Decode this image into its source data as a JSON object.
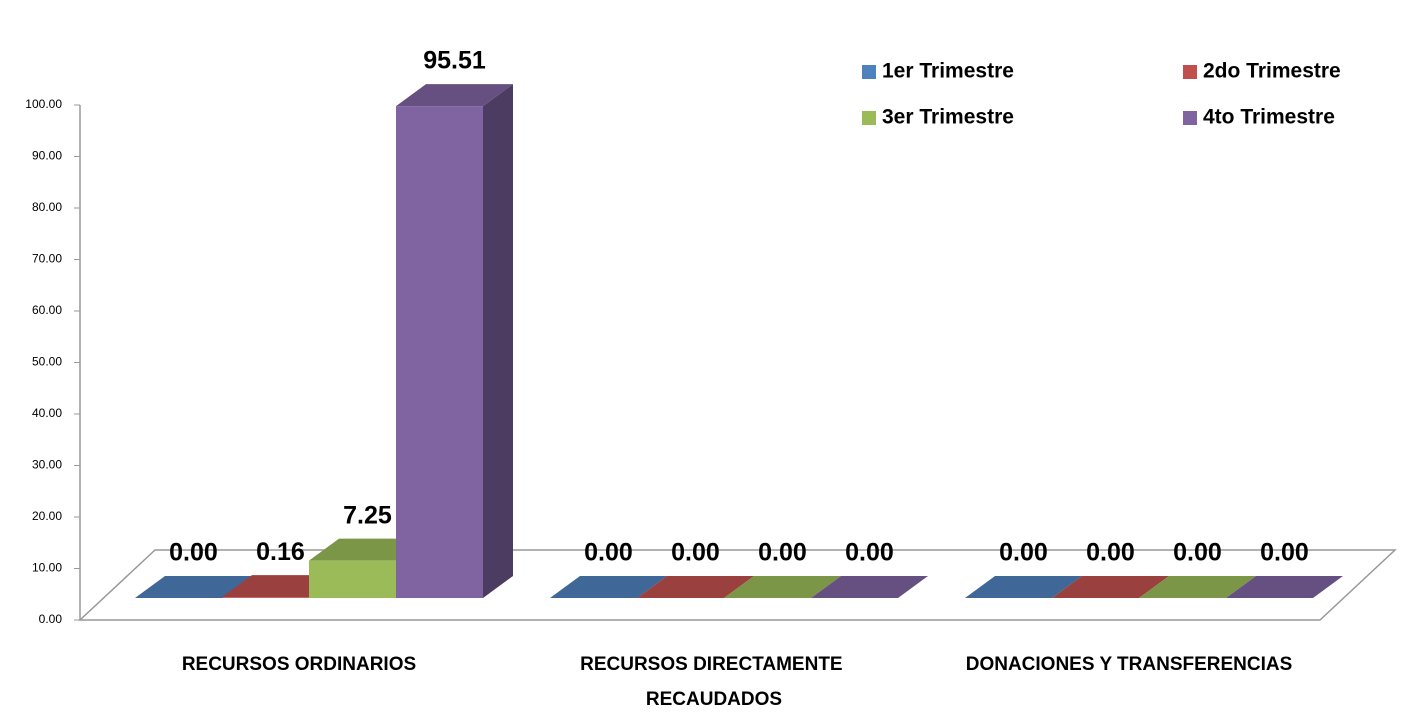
{
  "chart_data": {
    "type": "bar3d",
    "categories": [
      "RECURSOS ORDINARIOS",
      "RECURSOS DIRECTAMENTE RECAUDADOS",
      "DONACIONES Y TRANSFERENCIAS"
    ],
    "series": [
      {
        "name": "1er Trimestre",
        "color": "#4f81bd",
        "values": [
          0,
          0,
          0
        ],
        "value_labels": [
          "0.00",
          "0.00",
          "0.00"
        ]
      },
      {
        "name": "2do Trimestre",
        "color": "#c0504d",
        "values": [
          0.16,
          0,
          0
        ],
        "value_labels": [
          "0.16",
          "0.00",
          "0.00"
        ]
      },
      {
        "name": "3er Trimestre",
        "color": "#9bbb59",
        "values": [
          7.25,
          0,
          0
        ],
        "value_labels": [
          "7.25",
          "0.00",
          "0.00"
        ]
      },
      {
        "name": "4to Trimestre",
        "color": "#8064a2",
        "values": [
          95.51,
          0,
          0
        ],
        "value_labels": [
          "95.51",
          "0.00",
          "0.00"
        ]
      }
    ],
    "ylim": [
      0,
      100
    ],
    "yticks": [
      {
        "value": 0,
        "label": "0.00"
      },
      {
        "value": 10,
        "label": "10.00"
      },
      {
        "value": 20,
        "label": "20.00"
      },
      {
        "value": 30,
        "label": "30.00"
      },
      {
        "value": 40,
        "label": "40.00"
      },
      {
        "value": 50,
        "label": "50.00"
      },
      {
        "value": 60,
        "label": "60.00"
      },
      {
        "value": 70,
        "label": "70.00"
      },
      {
        "value": 80,
        "label": "80.00"
      },
      {
        "value": 90,
        "label": "90.00"
      },
      {
        "value": 100,
        "label": "100.00"
      }
    ],
    "grid": false,
    "legend": "top-right"
  }
}
